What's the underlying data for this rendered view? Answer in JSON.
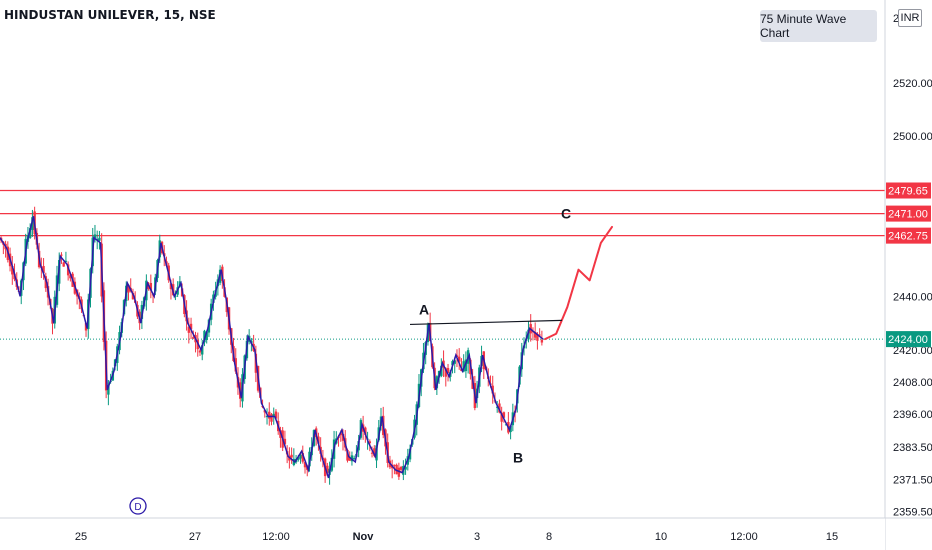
{
  "header": {
    "symbol_title": "HINDUSTAN UNILEVER, 15, NSE",
    "wave_chart_label": "75 Minute Wave Chart",
    "currency": "INR",
    "price_axis_partial_top": "2"
  },
  "chart_data": {
    "type": "candlestick",
    "title": "HINDUSTAN UNILEVER, 15, NSE",
    "ylim": [
      2357,
      2548
    ],
    "y_ticks": [
      "2520.00",
      "2500.00",
      "2440.00",
      "2420.00",
      "2408.00",
      "2396.00",
      "2383.50",
      "2371.50",
      "2359.50"
    ],
    "x_ticks": [
      "25",
      "27",
      "12:00",
      "Nov",
      "3",
      "8",
      "10",
      "12:00",
      "15"
    ],
    "price_labels": [
      {
        "label": "2479.65",
        "value": 2479.65,
        "color": "#f23645"
      },
      {
        "label": "2471.00",
        "value": 2471.0,
        "color": "#f23645"
      },
      {
        "label": "2462.75",
        "value": 2462.75,
        "color": "#f23645"
      },
      {
        "label": "2424.00",
        "value": 2424.0,
        "color": "#089981"
      }
    ],
    "horizontal_lines": [
      {
        "value": 2479.65,
        "color": "#f23645",
        "style": "solid"
      },
      {
        "value": 2471.0,
        "color": "#f23645",
        "style": "solid"
      },
      {
        "value": 2462.75,
        "color": "#f23645",
        "style": "solid"
      },
      {
        "value": 2424.0,
        "color": "#089981",
        "style": "dotted"
      }
    ],
    "wave_labels": [
      {
        "label": "A",
        "value": 2431
      },
      {
        "label": "B",
        "value": 2383
      },
      {
        "label": "C",
        "value": 2467
      }
    ],
    "trendline": {
      "from": 2429.5,
      "to": 2431,
      "color": "#131722"
    },
    "dividend_marker": "D",
    "price_path": [
      2462,
      2458,
      2450,
      2440,
      2460,
      2470,
      2452,
      2445,
      2430,
      2455,
      2452,
      2445,
      2438,
      2428,
      2462,
      2460,
      2405,
      2412,
      2425,
      2445,
      2440,
      2430,
      2445,
      2440,
      2460,
      2450,
      2440,
      2445,
      2430,
      2425,
      2420,
      2428,
      2440,
      2450,
      2435,
      2415,
      2402,
      2425,
      2420,
      2400,
      2395,
      2395,
      2388,
      2380,
      2378,
      2382,
      2375,
      2390,
      2380,
      2372,
      2385,
      2390,
      2380,
      2378,
      2392,
      2385,
      2380,
      2395,
      2378,
      2375,
      2374,
      2380,
      2392,
      2412,
      2430,
      2405,
      2415,
      2410,
      2418,
      2412,
      2418,
      2400,
      2418,
      2408,
      2400,
      2395,
      2390,
      2398,
      2420,
      2428,
      2426,
      2424
    ],
    "projection_path": [
      2424,
      2426,
      2436,
      2450,
      2446,
      2460,
      2466
    ],
    "candle_colors": {
      "up": "#089981",
      "down": "#f23645",
      "wave_line": "#2c1aa8",
      "projection": "#f23645"
    }
  }
}
